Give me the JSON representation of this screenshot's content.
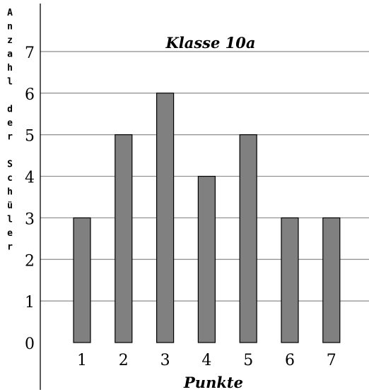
{
  "chart_data": {
    "type": "bar",
    "title": "Klasse 10a",
    "xlabel": "Punkte",
    "ylabel": "Anzahl der Schüler",
    "categories": [
      "1",
      "2",
      "3",
      "4",
      "5",
      "6",
      "7"
    ],
    "values": [
      3,
      5,
      6,
      4,
      5,
      3,
      3
    ],
    "yticks": [
      "0",
      "1",
      "2",
      "3",
      "4",
      "5",
      "6",
      "7"
    ],
    "ylim": [
      0,
      7
    ],
    "grid": true,
    "bar_color": "#808080",
    "bar_edge_color": "#000000",
    "grid_color": "#8c8c8c"
  }
}
